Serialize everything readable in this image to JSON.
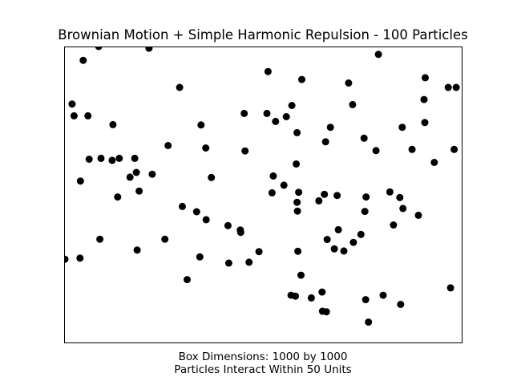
{
  "chart_data": {
    "type": "scatter",
    "title": "Brownian Motion + Simple Harmonic Repulsion - 100 Particles",
    "xlabel": [
      "Box Dimensions: 1000 by 1000",
      "Particles Interact Within 50 Units"
    ],
    "ylabel": "",
    "xlim": [
      0,
      1000
    ],
    "ylim": [
      0,
      1000
    ],
    "x_ticks_visible": false,
    "y_ticks_visible": false,
    "grid": false,
    "legend": null,
    "marker_color": "#000000",
    "series": [
      {
        "points": [
          [
            46,
            956
          ],
          [
            85,
            1003
          ],
          [
            212,
            997
          ],
          [
            289,
            864
          ],
          [
            512,
            918
          ],
          [
            597,
            891
          ],
          [
            715,
            879
          ],
          [
            790,
            976
          ],
          [
            725,
            806
          ],
          [
            908,
            897
          ],
          [
            905,
            823
          ],
          [
            966,
            864
          ],
          [
            986,
            864
          ],
          [
            18,
            808
          ],
          [
            23,
            768
          ],
          [
            58,
            768
          ],
          [
            121,
            738
          ],
          [
            343,
            737
          ],
          [
            452,
            776
          ],
          [
            454,
            649
          ],
          [
            509,
            776
          ],
          [
            531,
            749
          ],
          [
            572,
            803
          ],
          [
            585,
            711
          ],
          [
            558,
            765
          ],
          [
            657,
            680
          ],
          [
            669,
            729
          ],
          [
            754,
            692
          ],
          [
            784,
            650
          ],
          [
            850,
            729
          ],
          [
            875,
            654
          ],
          [
            907,
            745
          ],
          [
            583,
            605
          ],
          [
            981,
            654
          ],
          [
            931,
            610
          ],
          [
            260,
            667
          ],
          [
            355,
            659
          ],
          [
            176,
            624
          ],
          [
            137,
            624
          ],
          [
            91,
            624
          ],
          [
            61,
            621
          ],
          [
            180,
            576
          ],
          [
            39,
            547
          ],
          [
            119,
            617
          ],
          [
            164,
            560
          ],
          [
            187,
            513
          ],
          [
            133,
            493
          ],
          [
            220,
            570
          ],
          [
            296,
            461
          ],
          [
            332,
            443
          ],
          [
            356,
            416
          ],
          [
            411,
            396
          ],
          [
            442,
            381
          ],
          [
            443,
            373
          ],
          [
            369,
            559
          ],
          [
            525,
            564
          ],
          [
            522,
            507
          ],
          [
            552,
            533
          ],
          [
            589,
            509
          ],
          [
            585,
            475
          ],
          [
            586,
            445
          ],
          [
            640,
            480
          ],
          [
            654,
            502
          ],
          [
            686,
            498
          ],
          [
            759,
            493
          ],
          [
            756,
            444
          ],
          [
            844,
            491
          ],
          [
            819,
            510
          ],
          [
            852,
            454
          ],
          [
            891,
            431
          ],
          [
            828,
            398
          ],
          [
            689,
            382
          ],
          [
            661,
            349
          ],
          [
            727,
            339
          ],
          [
            703,
            310
          ],
          [
            746,
            366
          ],
          [
            679,
            317
          ],
          [
            587,
            309
          ],
          [
            0,
            282
          ],
          [
            38,
            286
          ],
          [
            88,
            350
          ],
          [
            182,
            313
          ],
          [
            252,
            350
          ],
          [
            340,
            290
          ],
          [
            413,
            269
          ],
          [
            489,
            308
          ],
          [
            464,
            272
          ],
          [
            308,
            213
          ],
          [
            595,
            228
          ],
          [
            581,
            157
          ],
          [
            570,
            160
          ],
          [
            621,
            151
          ],
          [
            649,
            106
          ],
          [
            648,
            171
          ],
          [
            659,
            104
          ],
          [
            758,
            145
          ],
          [
            765,
            69
          ],
          [
            846,
            129
          ],
          [
            802,
            160
          ],
          [
            972,
            185
          ]
        ]
      }
    ]
  }
}
